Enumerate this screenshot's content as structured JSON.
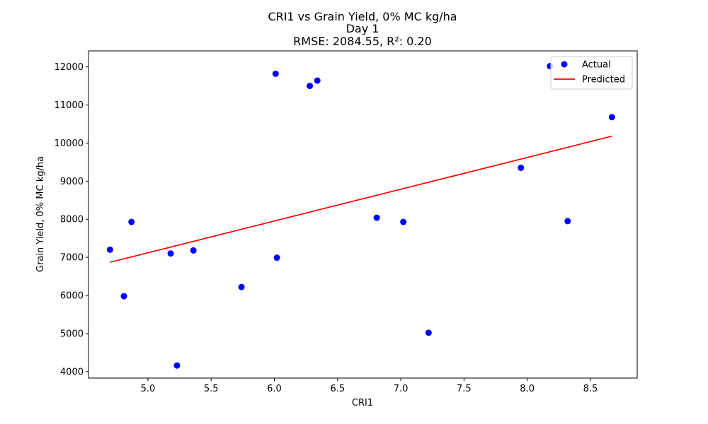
{
  "chart_data": {
    "type": "scatter",
    "title_lines": [
      "CRI1 vs Grain Yield, 0% MC kg/ha",
      "Day 1",
      "RMSE: 2084.55, R²: 0.20"
    ],
    "xlabel": "CRI1",
    "ylabel": "Grain Yield, 0% MC kg/ha",
    "xlim": [
      4.53,
      8.87
    ],
    "ylim": [
      3830,
      12420
    ],
    "x_ticks": [
      5.0,
      5.5,
      6.0,
      6.5,
      7.0,
      7.5,
      8.0,
      8.5
    ],
    "x_tick_labels": [
      "5.0",
      "5.5",
      "6.0",
      "6.5",
      "7.0",
      "7.5",
      "8.0",
      "8.5"
    ],
    "y_ticks": [
      4000,
      5000,
      6000,
      7000,
      8000,
      9000,
      10000,
      11000,
      12000
    ],
    "y_tick_labels": [
      "4000",
      "5000",
      "6000",
      "7000",
      "8000",
      "9000",
      "10000",
      "11000",
      "12000"
    ],
    "grid": false,
    "legend_position": "top-right",
    "series": [
      {
        "name": "Actual",
        "kind": "scatter",
        "color": "#0000ff",
        "points": [
          {
            "x": 4.7,
            "y": 7200
          },
          {
            "x": 4.81,
            "y": 5980
          },
          {
            "x": 4.87,
            "y": 7930
          },
          {
            "x": 5.18,
            "y": 7100
          },
          {
            "x": 5.23,
            "y": 4160
          },
          {
            "x": 5.36,
            "y": 7180
          },
          {
            "x": 5.74,
            "y": 6220
          },
          {
            "x": 6.01,
            "y": 11820
          },
          {
            "x": 6.02,
            "y": 6990
          },
          {
            "x": 6.28,
            "y": 11500
          },
          {
            "x": 6.34,
            "y": 11640
          },
          {
            "x": 6.81,
            "y": 8040
          },
          {
            "x": 7.02,
            "y": 7930
          },
          {
            "x": 7.22,
            "y": 5020
          },
          {
            "x": 7.95,
            "y": 9350
          },
          {
            "x": 8.18,
            "y": 12020
          },
          {
            "x": 8.32,
            "y": 7950
          },
          {
            "x": 8.67,
            "y": 10680
          }
        ]
      },
      {
        "name": "Predicted",
        "kind": "line",
        "color": "#ff0000",
        "points": [
          {
            "x": 4.7,
            "y": 6870
          },
          {
            "x": 8.67,
            "y": 10180
          }
        ]
      }
    ]
  }
}
